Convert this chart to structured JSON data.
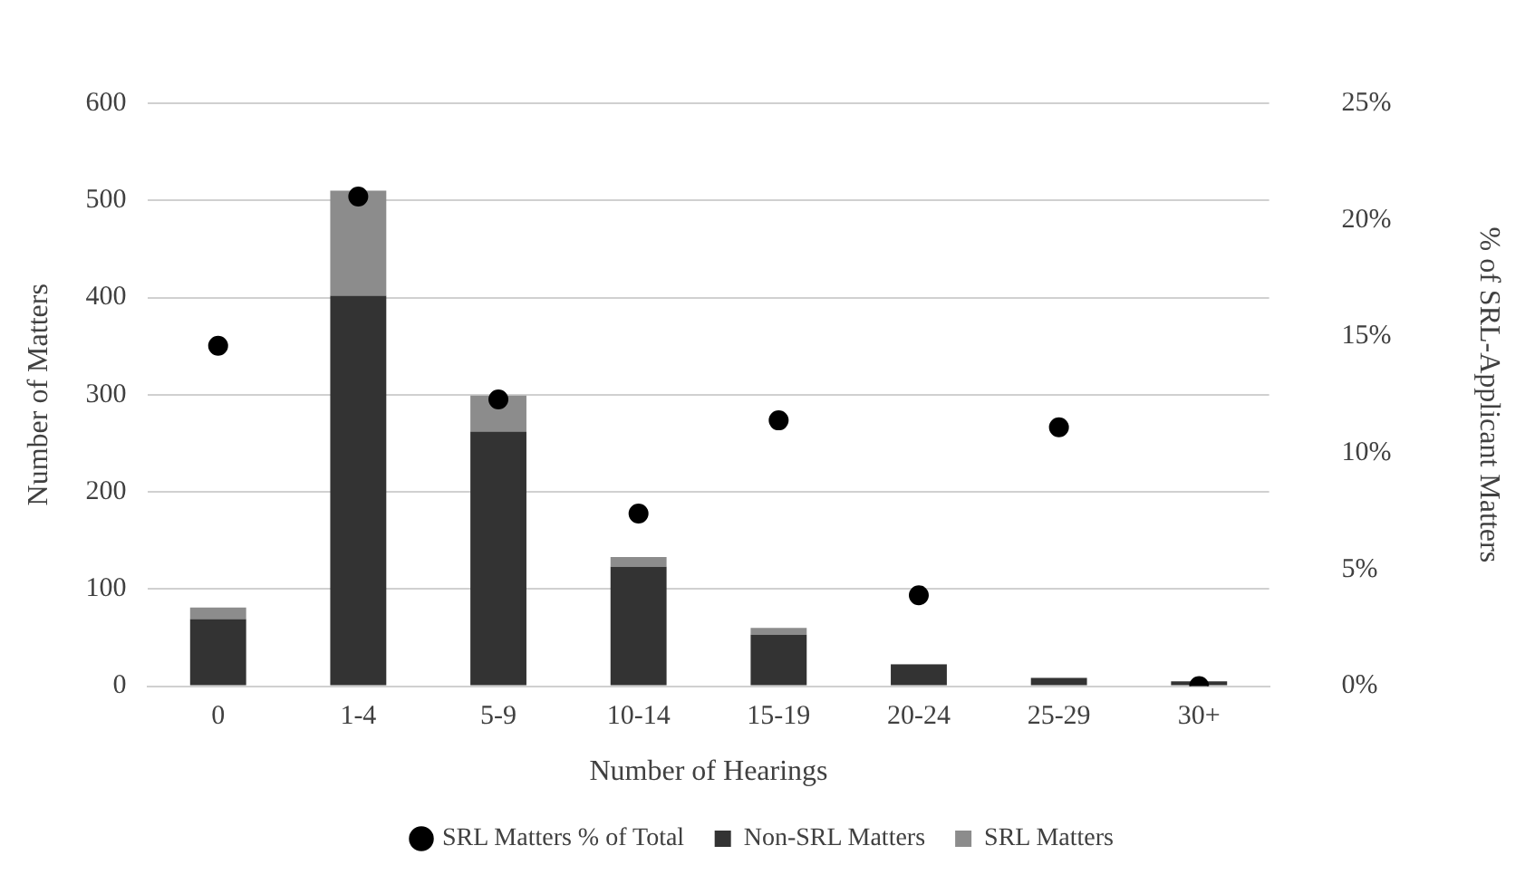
{
  "chart_data": {
    "type": "bar",
    "stacked": true,
    "xlabel": "Number of Hearings",
    "ylabel": "Number of Matters",
    "y2label": "% of SRL-Applicant Matters",
    "categories": [
      "0",
      "1-4",
      "5-9",
      "10-14",
      "15-19",
      "20-24",
      "25-29",
      "30+"
    ],
    "series": [
      {
        "name": "Non-SRL Matters",
        "color": "#333333",
        "values": [
          69,
          402,
          262,
          123,
          53,
          22,
          8,
          5
        ]
      },
      {
        "name": "SRL Matters",
        "color": "#8c8c8c",
        "values": [
          12,
          108,
          37,
          10,
          7,
          1,
          1,
          0
        ]
      },
      {
        "name": "SRL Matters % of Total",
        "type": "scatter",
        "axis": "y2",
        "marker": "circle",
        "color": "#000000",
        "values": [
          14.6,
          21.0,
          12.3,
          7.4,
          11.4,
          3.9,
          11.1,
          0
        ]
      }
    ],
    "ylim": [
      0,
      600
    ],
    "yticks": [
      0,
      100,
      200,
      300,
      400,
      500,
      600
    ],
    "y2lim": [
      0,
      25
    ],
    "y2ticks": [
      {
        "value": 0,
        "label": "0%"
      },
      {
        "value": 5,
        "label": "5%"
      },
      {
        "value": 10,
        "label": "10%"
      },
      {
        "value": 15,
        "label": "15%"
      },
      {
        "value": 20,
        "label": "20%"
      },
      {
        "value": 25,
        "label": "25%"
      }
    ],
    "grid": "y",
    "legend": "bottom"
  }
}
